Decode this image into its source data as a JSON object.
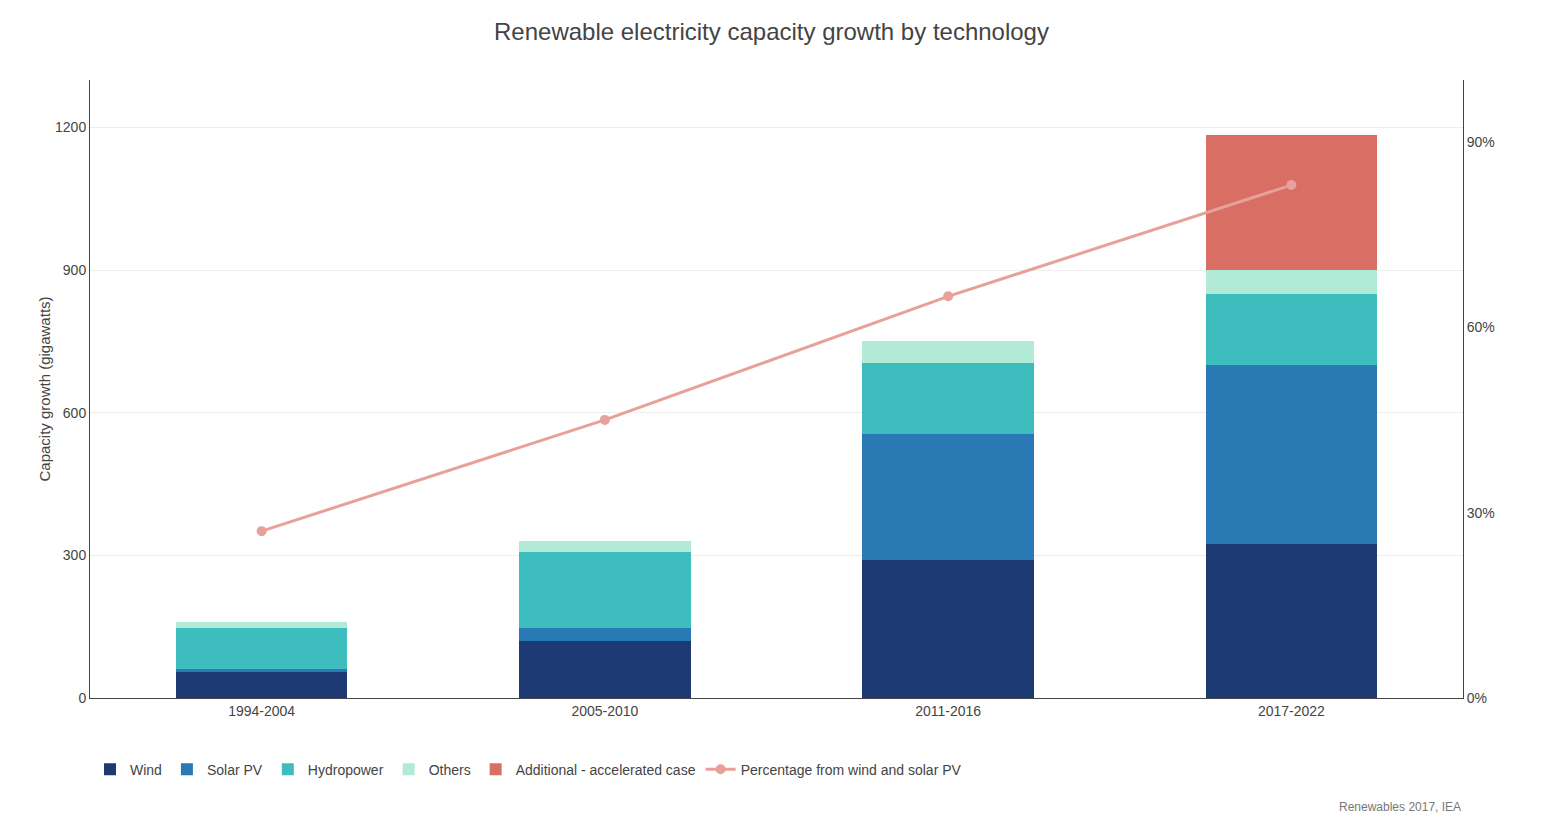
{
  "chart_data": {
    "type": "bar",
    "stacked": true,
    "title": "Renewable electricity capacity growth by technology",
    "ylabel": "Capacity growth (gigawatts)",
    "categories": [
      "1994-2004",
      "2005-2010",
      "2011-2016",
      "2017-2022"
    ],
    "series": [
      {
        "name": "Wind",
        "color": "#1e3a74",
        "values": [
          55,
          120,
          290,
          325
        ]
      },
      {
        "name": "Solar PV",
        "color": "#2979b5",
        "values": [
          5,
          28,
          265,
          375
        ]
      },
      {
        "name": "Hydropower",
        "color": "#3dbdbe",
        "values": [
          87,
          160,
          150,
          150
        ]
      },
      {
        "name": "Others",
        "color": "#b2ead8",
        "values": [
          13,
          22,
          45,
          50
        ]
      },
      {
        "name": "Additional - accelerated case",
        "color": "#d96e65",
        "values": [
          0,
          0,
          0,
          285
        ]
      },
      {
        "name": "Percentage from wind and solar PV",
        "type": "line",
        "axis": "y2",
        "color": "#e8a09a",
        "marker": "circle",
        "values": [
          27,
          45,
          65,
          83
        ]
      }
    ],
    "ylim": [
      0,
      1300
    ],
    "yticks": [
      0,
      300,
      600,
      900,
      1200
    ],
    "y2lim": [
      0,
      100
    ],
    "y2ticks": [
      {
        "value": 0,
        "label": "0%"
      },
      {
        "value": 30,
        "label": "30%"
      },
      {
        "value": 60,
        "label": "60%"
      },
      {
        "value": 90,
        "label": "90%"
      }
    ],
    "grid": true,
    "legend": "bottom",
    "annotations": [
      "Renewables 2017, IEA"
    ]
  }
}
